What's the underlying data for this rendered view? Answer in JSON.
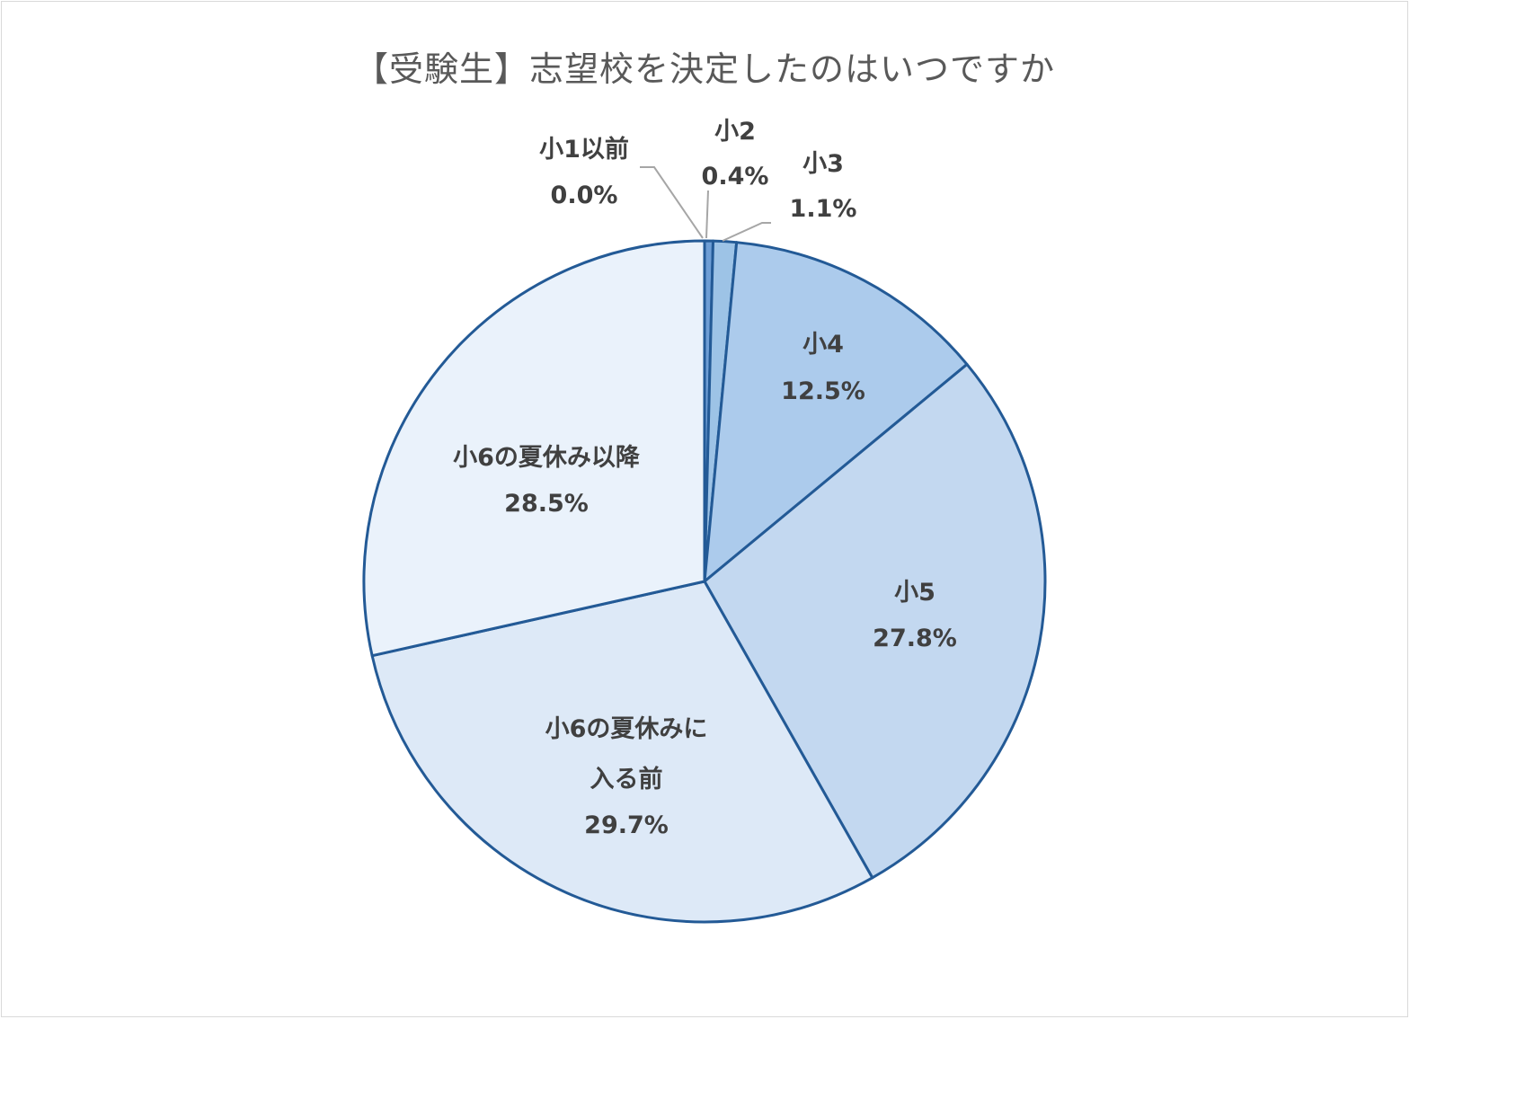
{
  "chart_data": {
    "type": "pie",
    "title": "【受験生】志望校を決定したのはいつですか",
    "start_angle_deg": 0,
    "direction": "clockwise",
    "slices": [
      {
        "label": "小1以前",
        "value": 0.0,
        "value_label": "0.0%",
        "color": "#1f4e9a"
      },
      {
        "label": "小2",
        "value": 0.4,
        "value_label": "0.4%",
        "color": "#6e9ed5"
      },
      {
        "label": "小3",
        "value": 1.1,
        "value_label": "1.1%",
        "color": "#9dc3e6"
      },
      {
        "label": "小4",
        "value": 12.5,
        "value_label": "12.5%",
        "color": "#accbec"
      },
      {
        "label": "小5",
        "value": 27.8,
        "value_label": "27.8%",
        "color": "#c3d8f0"
      },
      {
        "label": "小6の夏休みに入る前",
        "value": 29.7,
        "value_label": "29.7%",
        "color": "#dde9f7"
      },
      {
        "label": "小6の夏休み以降",
        "value": 28.5,
        "value_label": "28.5%",
        "color": "#eaf2fb"
      }
    ],
    "outline_color": "#235a96",
    "leader_line_color": "#a6a6a6",
    "label_text_color": "#404040"
  }
}
